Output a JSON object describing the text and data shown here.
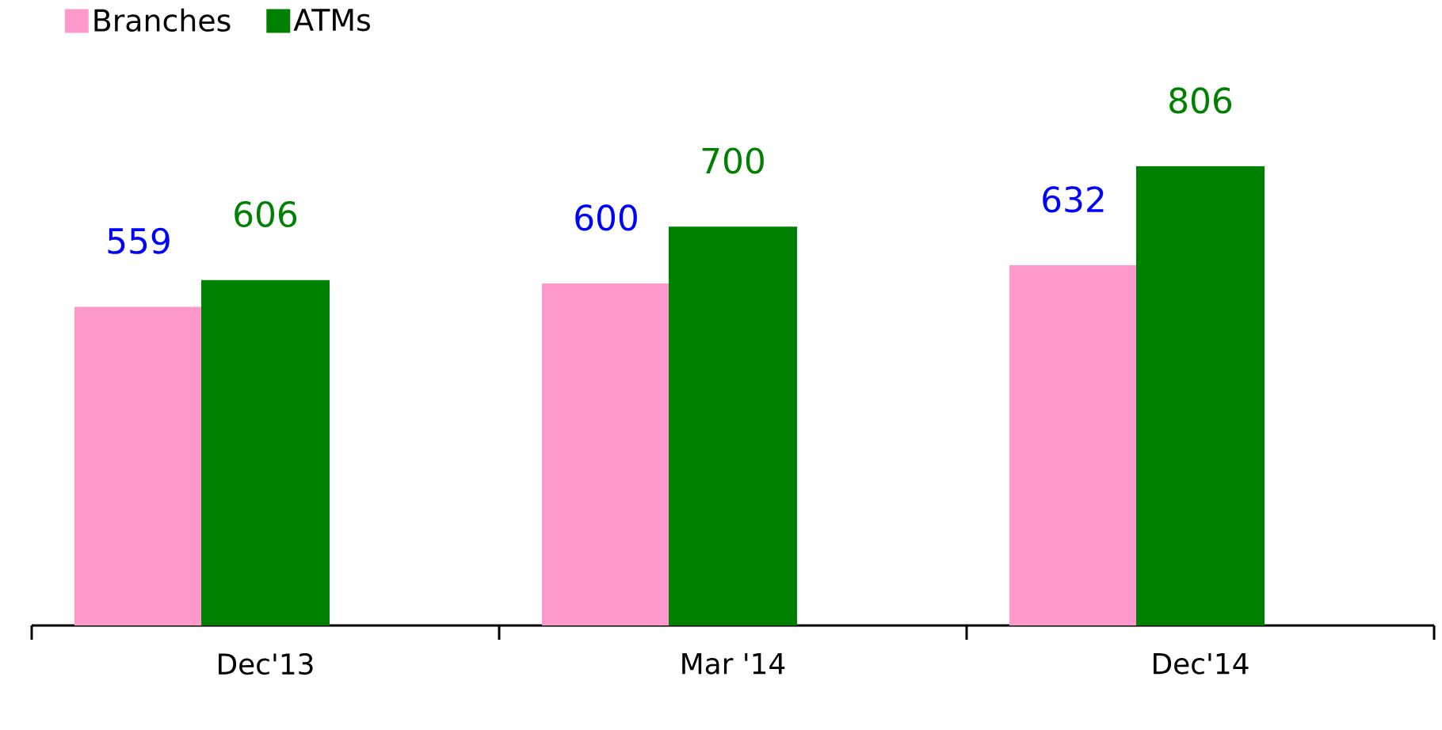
{
  "chart_data": {
    "type": "bar",
    "categories": [
      "Dec'13",
      "Mar '14",
      "Dec'14"
    ],
    "series": [
      {
        "name": "Branches",
        "color": "#ff99cc",
        "values": [
          559,
          600,
          632
        ]
      },
      {
        "name": "ATMs",
        "color": "#008000",
        "values": [
          606,
          700,
          806
        ]
      }
    ],
    "data_labels": true,
    "legend": "top left",
    "grid": false
  }
}
